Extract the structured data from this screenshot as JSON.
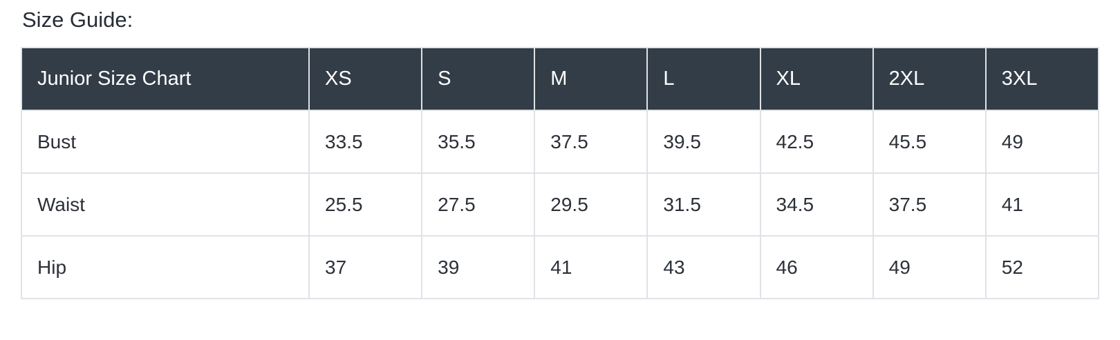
{
  "page": {
    "heading": "Size Guide:"
  },
  "chart_data": {
    "type": "table",
    "title": "Size Guide:",
    "columns": [
      "Junior Size Chart",
      "XS",
      "S",
      "M",
      "L",
      "XL",
      "2XL",
      "3XL"
    ],
    "rows": [
      {
        "label": "Bust",
        "values": [
          "33.5",
          "35.5",
          "37.5",
          "39.5",
          "42.5",
          "45.5",
          "49"
        ]
      },
      {
        "label": "Waist",
        "values": [
          "25.5",
          "27.5",
          "29.5",
          "31.5",
          "34.5",
          "37.5",
          "41"
        ]
      },
      {
        "label": "Hip",
        "values": [
          "37",
          "39",
          "41",
          "43",
          "46",
          "49",
          "52"
        ]
      }
    ],
    "layout": {
      "header_row": true,
      "grid": true,
      "units": "inches"
    }
  },
  "colors": {
    "header_bg": "#333d47",
    "header_text": "#ffffff",
    "body_text": "#2b3038",
    "heading_text": "#262c35",
    "border": "#dfe2e6",
    "page_bg": "#ffffff"
  }
}
